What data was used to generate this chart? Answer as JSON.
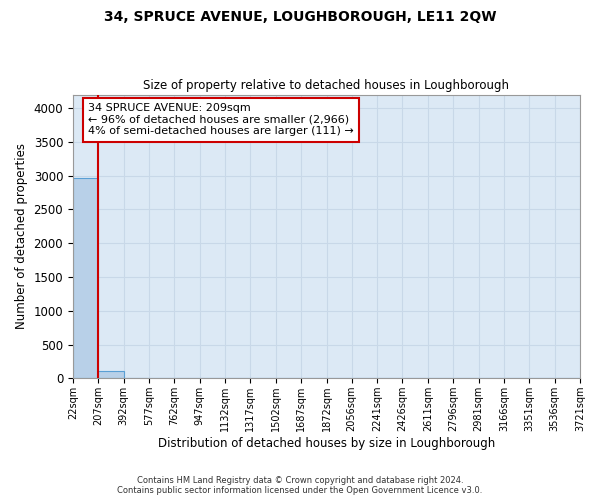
{
  "title": "34, SPRUCE AVENUE, LOUGHBOROUGH, LE11 2QW",
  "subtitle": "Size of property relative to detached houses in Loughborough",
  "xlabel": "Distribution of detached houses by size in Loughborough",
  "ylabel": "Number of detached properties",
  "property_size": 209,
  "annotation_line1": "34 SPRUCE AVENUE: 209sqm",
  "annotation_line2": "← 96% of detached houses are smaller (2,966)",
  "annotation_line3": "4% of semi-detached houses are larger (111) →",
  "bin_edges": [
    22,
    207,
    392,
    577,
    762,
    947,
    1132,
    1317,
    1502,
    1687,
    1872,
    2056,
    2241,
    2426,
    2611,
    2796,
    2981,
    3166,
    3351,
    3536,
    3721
  ],
  "bar_values": [
    2966,
    111,
    0,
    0,
    0,
    0,
    0,
    0,
    0,
    0,
    0,
    0,
    0,
    0,
    0,
    0,
    0,
    0,
    0,
    0
  ],
  "bar_color": "#b8d0e8",
  "bar_edge_color": "#5a9fd4",
  "red_line_color": "#cc0000",
  "annotation_box_color": "#ffffff",
  "annotation_box_edge": "#cc0000",
  "grid_color": "#c8d8e8",
  "bg_color": "#dce9f5",
  "ylim": [
    0,
    4200
  ],
  "yticks": [
    0,
    500,
    1000,
    1500,
    2000,
    2500,
    3000,
    3500,
    4000
  ],
  "footer_line1": "Contains HM Land Registry data © Crown copyright and database right 2024.",
  "footer_line2": "Contains public sector information licensed under the Open Government Licence v3.0."
}
